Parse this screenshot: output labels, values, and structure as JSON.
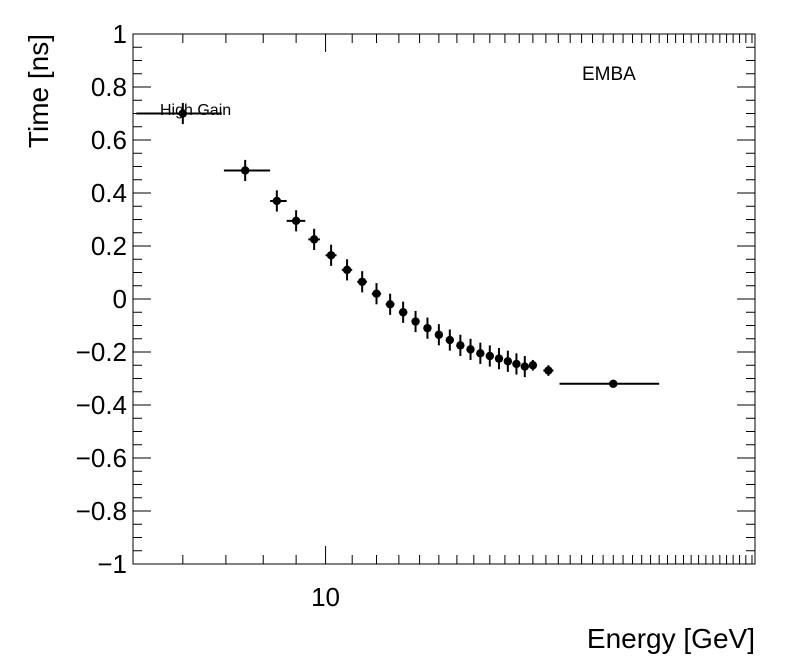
{
  "chart_data": {
    "type": "scatter",
    "title": "",
    "xlabel": "Energy [GeV]",
    "ylabel": "Time [ns]",
    "xscale": "log",
    "xlim": [
      5.02,
      46.5
    ],
    "ylim": [
      -1,
      1
    ],
    "grid": false,
    "x_tick_labels": [
      {
        "value": 10,
        "label": "10"
      }
    ],
    "y_tick_labels": [
      {
        "value": 1,
        "label": "1"
      },
      {
        "value": 0.8,
        "label": "0.8"
      },
      {
        "value": 0.6,
        "label": "0.6"
      },
      {
        "value": 0.4,
        "label": "0.4"
      },
      {
        "value": 0.2,
        "label": "0.2"
      },
      {
        "value": 0,
        "label": "0"
      },
      {
        "value": -0.2,
        "label": "−0.2"
      },
      {
        "value": -0.4,
        "label": "−0.4"
      },
      {
        "value": -0.6,
        "label": "−0.6"
      },
      {
        "value": -0.8,
        "label": "−0.8"
      },
      {
        "value": -1,
        "label": "−1"
      }
    ],
    "annotations": {
      "detector": "EMBA",
      "gain": "High Gain"
    },
    "series": [
      {
        "marker": "circle",
        "color": "#000000",
        "points": [
          {
            "x": 6.0,
            "xlo": 5.08,
            "xhi": 6.9,
            "y": 0.7,
            "yerr": 0.04
          },
          {
            "x": 7.5,
            "xlo": 6.95,
            "xhi": 8.2,
            "y": 0.485,
            "yerr": 0.04
          },
          {
            "x": 8.4,
            "xlo": 8.2,
            "xhi": 8.7,
            "y": 0.37,
            "yerr": 0.04
          },
          {
            "x": 9.0,
            "xlo": 8.7,
            "xhi": 9.3,
            "y": 0.295,
            "yerr": 0.04
          },
          {
            "x": 9.6,
            "xlo": 9.4,
            "xhi": 9.8,
            "y": 0.225,
            "yerr": 0.04
          },
          {
            "x": 10.2,
            "xlo": 10.0,
            "xhi": 10.4,
            "y": 0.165,
            "yerr": 0.04
          },
          {
            "x": 10.8,
            "xlo": 10.6,
            "xhi": 11.0,
            "y": 0.11,
            "yerr": 0.04
          },
          {
            "x": 11.4,
            "xlo": 11.2,
            "xhi": 11.6,
            "y": 0.065,
            "yerr": 0.04
          },
          {
            "x": 12.0,
            "xlo": 11.8,
            "xhi": 12.2,
            "y": 0.02,
            "yerr": 0.04
          },
          {
            "x": 12.6,
            "xlo": 12.4,
            "xhi": 12.8,
            "y": -0.02,
            "yerr": 0.04
          },
          {
            "x": 13.2,
            "xlo": 13.0,
            "xhi": 13.4,
            "y": -0.05,
            "yerr": 0.04
          },
          {
            "x": 13.8,
            "xlo": 13.6,
            "xhi": 14.0,
            "y": -0.085,
            "yerr": 0.04
          },
          {
            "x": 14.4,
            "xlo": 14.2,
            "xhi": 14.6,
            "y": -0.11,
            "yerr": 0.04
          },
          {
            "x": 15.0,
            "xlo": 14.8,
            "xhi": 15.2,
            "y": -0.135,
            "yerr": 0.04
          },
          {
            "x": 15.6,
            "xlo": 15.4,
            "xhi": 15.8,
            "y": -0.155,
            "yerr": 0.04
          },
          {
            "x": 16.2,
            "xlo": 16.0,
            "xhi": 16.4,
            "y": -0.175,
            "yerr": 0.04
          },
          {
            "x": 16.8,
            "xlo": 16.6,
            "xhi": 17.0,
            "y": -0.19,
            "yerr": 0.04
          },
          {
            "x": 17.4,
            "xlo": 17.2,
            "xhi": 17.6,
            "y": -0.205,
            "yerr": 0.04
          },
          {
            "x": 18.0,
            "xlo": 17.8,
            "xhi": 18.2,
            "y": -0.215,
            "yerr": 0.04
          },
          {
            "x": 18.6,
            "xlo": 18.4,
            "xhi": 18.8,
            "y": -0.225,
            "yerr": 0.04
          },
          {
            "x": 19.2,
            "xlo": 19.0,
            "xhi": 19.4,
            "y": -0.235,
            "yerr": 0.04
          },
          {
            "x": 19.8,
            "xlo": 19.6,
            "xhi": 20.0,
            "y": -0.245,
            "yerr": 0.04
          },
          {
            "x": 20.4,
            "xlo": 20.2,
            "xhi": 20.6,
            "y": -0.255,
            "yerr": 0.04
          },
          {
            "x": 21.0,
            "xlo": 20.8,
            "xhi": 21.2,
            "y": -0.25,
            "yerr": 0.02
          },
          {
            "x": 22.2,
            "xlo": 21.8,
            "xhi": 22.6,
            "y": -0.27,
            "yerr": 0.02
          },
          {
            "x": 28.0,
            "xlo": 23.1,
            "xhi": 33.0,
            "y": -0.32,
            "yerr": 0.01
          }
        ]
      }
    ]
  }
}
